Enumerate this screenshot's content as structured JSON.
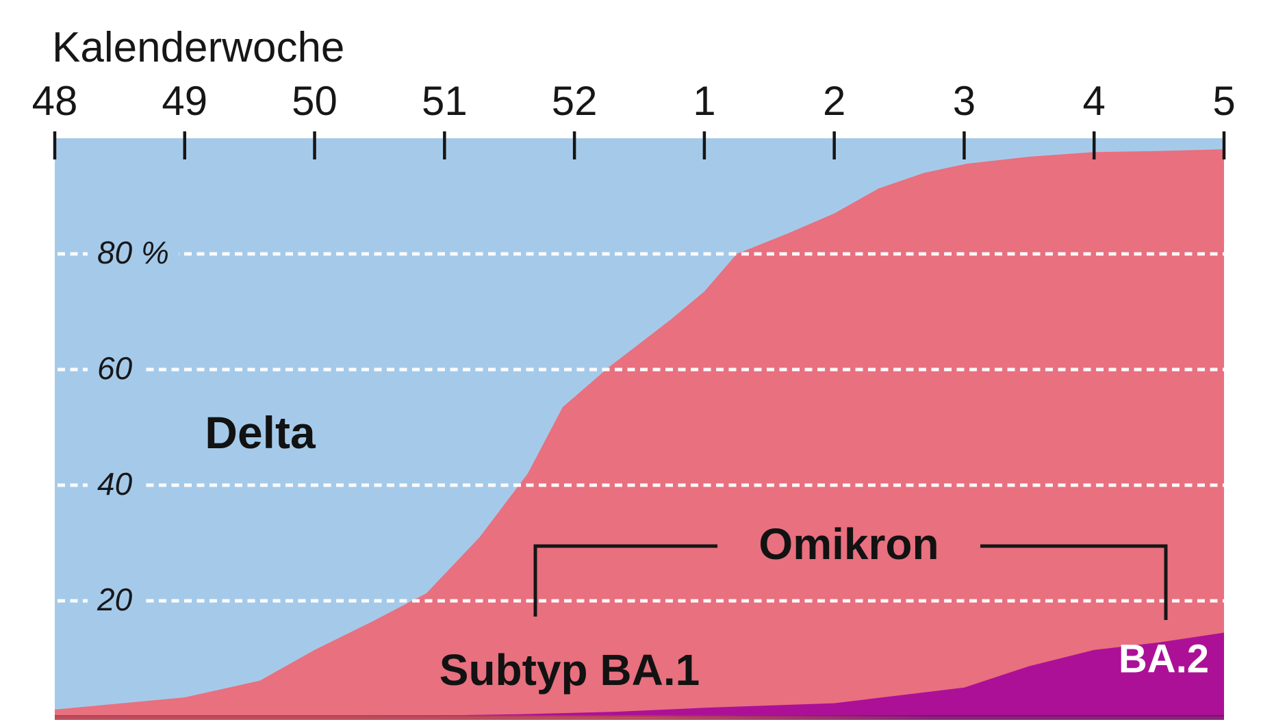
{
  "title": "Kalenderwoche",
  "labels": {
    "delta": "Delta",
    "omikron": "Omikron",
    "subtyp_ba1": "Subtyp BA.1",
    "ba2": "BA.2"
  },
  "colors": {
    "delta_blue": "#a5cae9",
    "ba1_pink": "#e8707f",
    "ba2_magenta": "#ac1097",
    "gridline_white": "#ffffff",
    "axis_black": "#161616",
    "baseline_left_dark": "#b43a4c",
    "baseline_right_dark": "#7c0d6e",
    "background": "#ffffff"
  },
  "x_axis": {
    "title": "Kalenderwoche",
    "tick_labels": [
      "48",
      "49",
      "50",
      "51",
      "52",
      "1",
      "2",
      "3",
      "4",
      "5"
    ]
  },
  "y_axis": {
    "labels": [
      {
        "text": "80 %",
        "pct": 80
      },
      {
        "text": "60",
        "pct": 60
      },
      {
        "text": "40",
        "pct": 40
      },
      {
        "text": "20",
        "pct": 20
      }
    ]
  },
  "chart_data": {
    "type": "area",
    "stacked": true,
    "unit": "percent share of samples",
    "title": "Kalenderwoche",
    "categories": [
      "48",
      "49",
      "50",
      "51",
      "52",
      "1",
      "2",
      "3",
      "4",
      "5"
    ],
    "ylim": [
      0,
      100
    ],
    "gridlines_pct": [
      80,
      60,
      40,
      20
    ],
    "grid_style": "white dashed",
    "legend_position": "in-chart labels",
    "series": [
      {
        "name": "Delta",
        "color": "#a5cae9",
        "values": [
          98.8,
          96.7,
          88.5,
          77.7,
          45.5,
          26.5,
          13.0,
          4.5,
          2.4,
          2.0
        ]
      },
      {
        "name": "Omikron Subtyp BA.1",
        "color": "#e8707f",
        "values": [
          1.2,
          3.3,
          11.5,
          22.1,
          53.7,
          72.0,
          84.7,
          90.5,
          86.1,
          83.5
        ]
      },
      {
        "name": "Omikron Subtyp BA.2",
        "color": "#ac1097",
        "values": [
          0.0,
          0.0,
          0.0,
          0.2,
          0.8,
          1.5,
          2.3,
          5.0,
          11.5,
          14.5
        ]
      }
    ],
    "boundaries": {
      "comment": "w = week position index 0..9 along x, pct = cumulative share boundary read from pixels",
      "omikron_top": [
        [
          0,
          1.2
        ],
        [
          1,
          3.3
        ],
        [
          1.58,
          6.2
        ],
        [
          2,
          11.5
        ],
        [
          2.45,
          16.5
        ],
        [
          2.86,
          21.3
        ],
        [
          3.27,
          31
        ],
        [
          3.64,
          42
        ],
        [
          3.91,
          53.5
        ],
        [
          4.27,
          60.5
        ],
        [
          4.74,
          68.6
        ],
        [
          5,
          73.5
        ],
        [
          5.25,
          80
        ],
        [
          5.64,
          83.5
        ],
        [
          6,
          87
        ],
        [
          6.34,
          91.3
        ],
        [
          6.69,
          94
        ],
        [
          7.02,
          95.6
        ],
        [
          7.5,
          96.8
        ],
        [
          8,
          97.6
        ],
        [
          8.5,
          97.8
        ],
        [
          9,
          98.1
        ]
      ],
      "ba2_top": [
        [
          0,
          0
        ],
        [
          2.2,
          0
        ],
        [
          2.9,
          0.15
        ],
        [
          3.6,
          0.4
        ],
        [
          4.3,
          0.8
        ],
        [
          5,
          1.5
        ],
        [
          6,
          2.3
        ],
        [
          7,
          5
        ],
        [
          7.5,
          8.7
        ],
        [
          8,
          11.5
        ],
        [
          8.5,
          12.8
        ],
        [
          9,
          14.5
        ]
      ]
    }
  }
}
